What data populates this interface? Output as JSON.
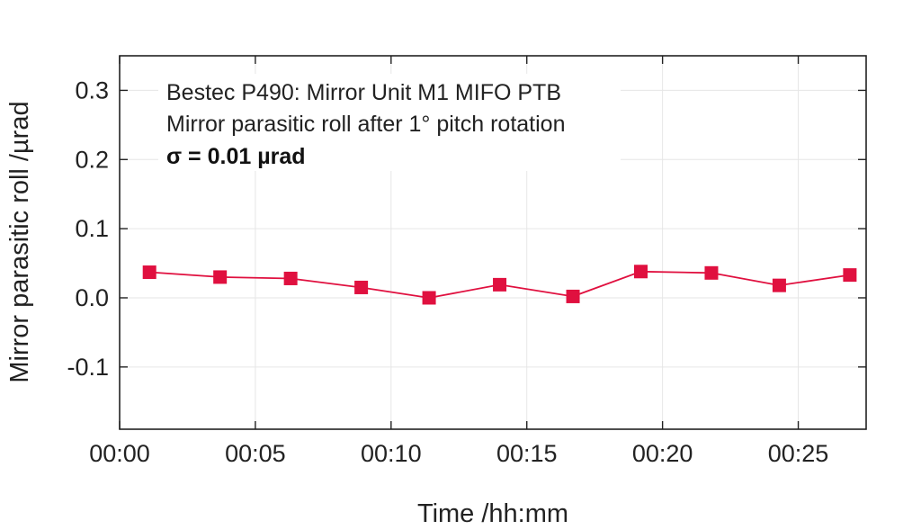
{
  "chart_data": {
    "type": "line",
    "title": "",
    "xlabel": "Time /hh:mm",
    "ylabel": "Mirror parasitic roll /µrad",
    "xlim": [
      0,
      27.5
    ],
    "ylim": [
      -0.19,
      0.35
    ],
    "xticks": [
      {
        "value": 0,
        "label": "00:00"
      },
      {
        "value": 5,
        "label": "00:05"
      },
      {
        "value": 10,
        "label": "00:10"
      },
      {
        "value": 15,
        "label": "00:15"
      },
      {
        "value": 20,
        "label": "00:20"
      },
      {
        "value": 25,
        "label": "00:25"
      }
    ],
    "yticks": [
      {
        "value": 0.3,
        "label": "0.3"
      },
      {
        "value": 0.2,
        "label": "0.2"
      },
      {
        "value": 0.1,
        "label": "0.1"
      },
      {
        "value": 0.0,
        "label": "0.0"
      },
      {
        "value": -0.1,
        "label": "-0.1"
      }
    ],
    "grid": true,
    "series": [
      {
        "color": "#e0103f",
        "marker": "square",
        "x": [
          1.1,
          3.7,
          6.3,
          8.9,
          11.4,
          14.0,
          16.7,
          19.2,
          21.8,
          24.3,
          26.9
        ],
        "y": [
          0.037,
          0.03,
          0.028,
          0.015,
          0.0,
          0.019,
          0.002,
          0.038,
          0.036,
          0.018,
          0.033
        ]
      }
    ],
    "annotations": [
      {
        "text": "Bestec P490: Mirror Unit M1 MIFO PTB",
        "bold": false
      },
      {
        "text": "Mirror parasitic roll after 1° pitch rotation",
        "bold": false
      },
      {
        "text": "σ = 0.01 µrad",
        "bold": true
      }
    ]
  }
}
